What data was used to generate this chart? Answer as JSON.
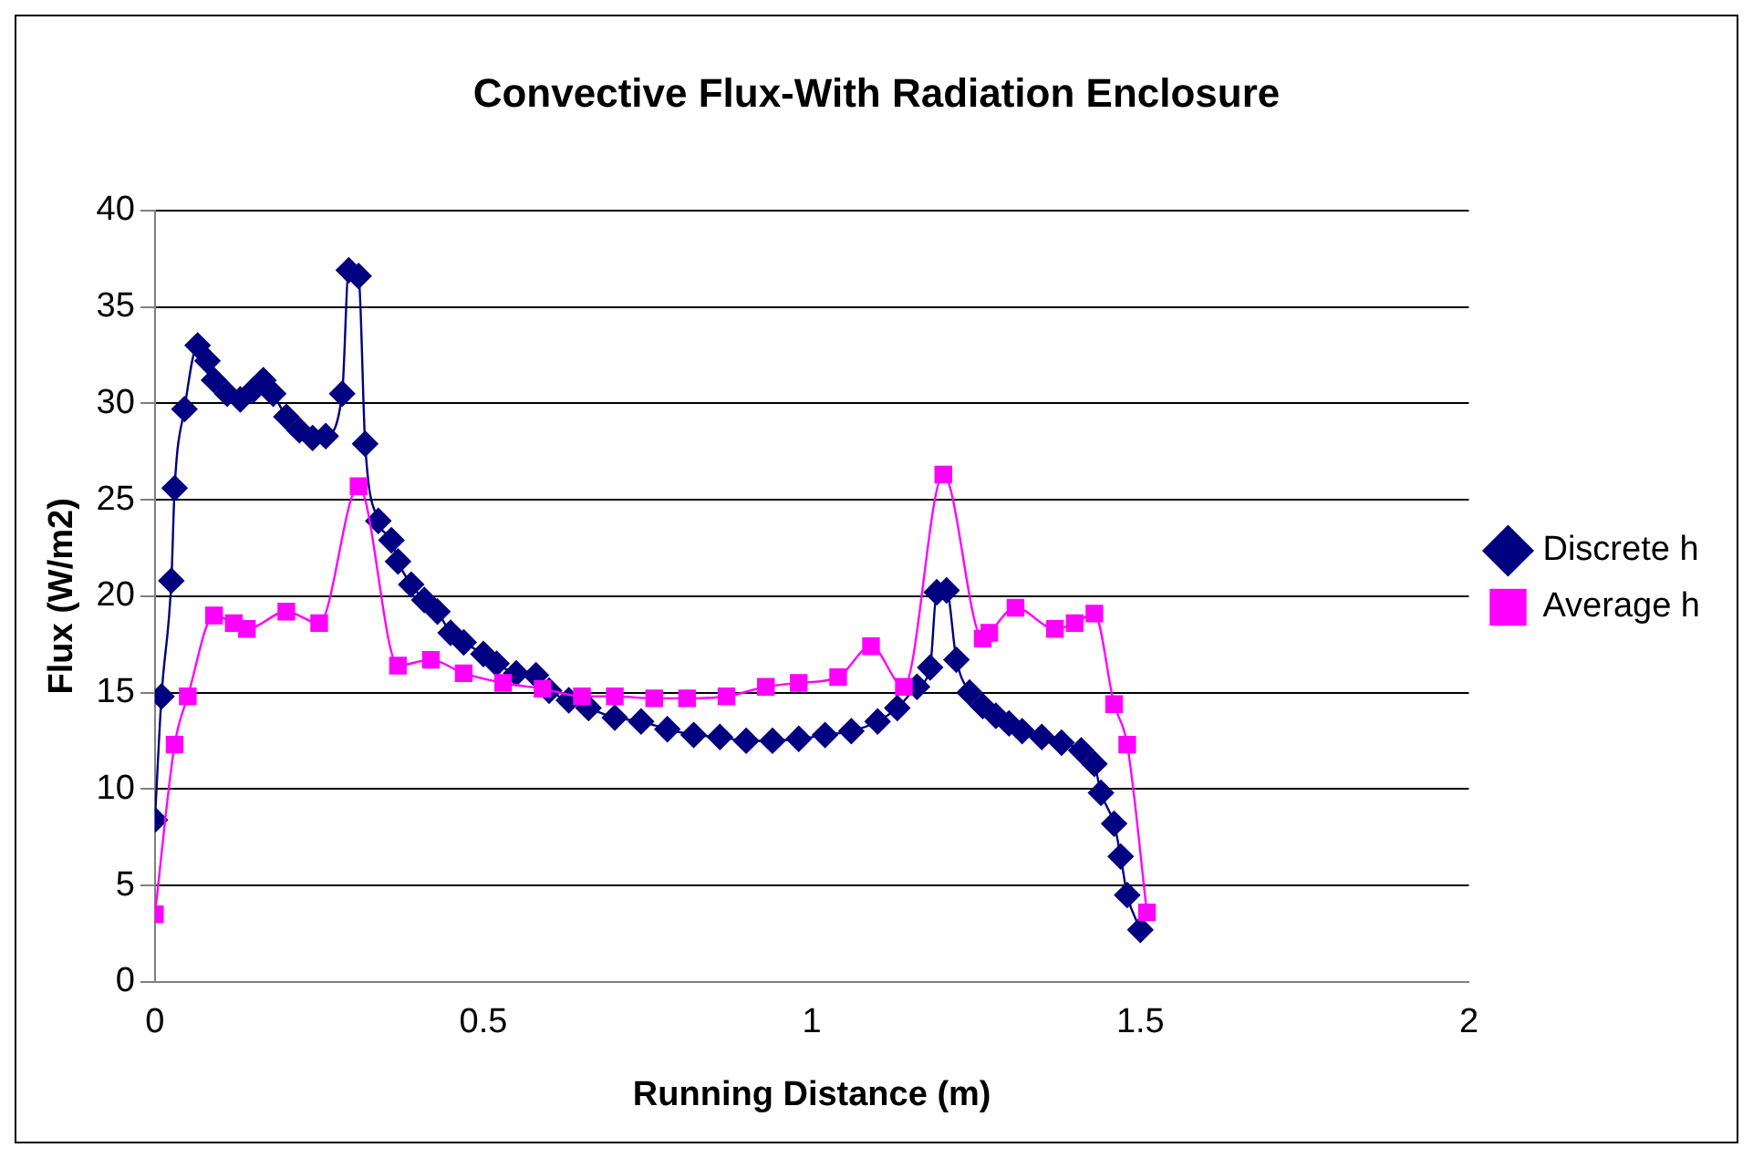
{
  "chart_data": {
    "type": "line",
    "title": "Convective Flux-With Radiation Enclosure",
    "xlabel": "Running Distance (m)",
    "ylabel": "Flux (W/m2)",
    "xlim": [
      0,
      2
    ],
    "xticks": [
      0,
      0.5,
      1,
      1.5,
      2
    ],
    "ylim": [
      0,
      40
    ],
    "yticks": [
      0,
      5,
      10,
      15,
      20,
      25,
      30,
      35,
      40
    ],
    "grid": "y",
    "legend": "right",
    "series": [
      {
        "name": "Discrete h",
        "color": "#000080",
        "marker": "diamond",
        "x": [
          0,
          0.01,
          0.025,
          0.03,
          0.045,
          0.065,
          0.08,
          0.09,
          0.11,
          0.13,
          0.15,
          0.165,
          0.18,
          0.2,
          0.22,
          0.24,
          0.26,
          0.285,
          0.295,
          0.31,
          0.32,
          0.34,
          0.36,
          0.37,
          0.39,
          0.41,
          0.43,
          0.45,
          0.47,
          0.5,
          0.52,
          0.55,
          0.58,
          0.6,
          0.63,
          0.66,
          0.7,
          0.74,
          0.78,
          0.82,
          0.86,
          0.9,
          0.94,
          0.98,
          1.02,
          1.06,
          1.1,
          1.13,
          1.16,
          1.18,
          1.19,
          1.205,
          1.22,
          1.24,
          1.26,
          1.28,
          1.3,
          1.32,
          1.35,
          1.38,
          1.41,
          1.43,
          1.44,
          1.46,
          1.47,
          1.48,
          1.5
        ],
        "values": [
          8.4,
          14.8,
          20.8,
          25.6,
          29.7,
          33,
          32.2,
          31.2,
          30.5,
          30.2,
          30.7,
          31.2,
          30.5,
          29.3,
          28.6,
          28.2,
          28.3,
          30.5,
          36.9,
          36.6,
          27.9,
          23.9,
          22.9,
          21.8,
          20.6,
          19.8,
          19.2,
          18.1,
          17.6,
          17,
          16.5,
          16,
          15.9,
          15.1,
          14.6,
          14.2,
          13.7,
          13.5,
          13.1,
          12.8,
          12.7,
          12.5,
          12.5,
          12.6,
          12.8,
          13,
          13.5,
          14.2,
          15.3,
          16.3,
          20.2,
          20.3,
          16.7,
          15,
          14.3,
          13.8,
          13.4,
          13,
          12.7,
          12.4,
          12,
          11.3,
          9.8,
          8.2,
          6.5,
          4.5,
          2.7
        ]
      },
      {
        "name": "Average h",
        "color": "#ff00ff",
        "marker": "square",
        "x": [
          0,
          0.03,
          0.05,
          0.09,
          0.12,
          0.14,
          0.2,
          0.25,
          0.31,
          0.37,
          0.42,
          0.47,
          0.53,
          0.59,
          0.65,
          0.7,
          0.76,
          0.81,
          0.87,
          0.93,
          0.98,
          1.04,
          1.09,
          1.14,
          1.2,
          1.26,
          1.27,
          1.31,
          1.37,
          1.4,
          1.43,
          1.46,
          1.48,
          1.51
        ],
        "values": [
          3.5,
          12.3,
          14.8,
          19,
          18.6,
          18.3,
          19.2,
          18.6,
          25.7,
          16.4,
          16.7,
          16,
          15.5,
          15.2,
          14.8,
          14.8,
          14.7,
          14.7,
          14.8,
          15.3,
          15.5,
          15.8,
          17.4,
          15.3,
          26.3,
          17.8,
          18.1,
          19.4,
          18.3,
          18.6,
          19.1,
          14.4,
          12.3,
          3.6
        ]
      }
    ]
  }
}
